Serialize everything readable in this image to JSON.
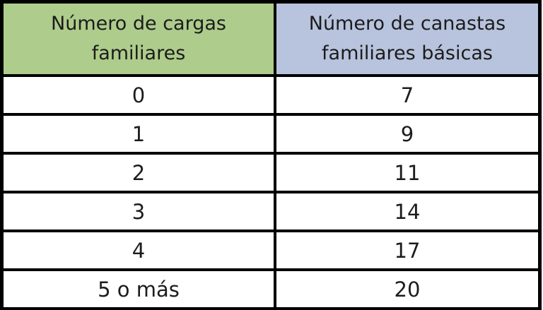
{
  "table": {
    "headers": {
      "cargas": "Número de cargas familiares",
      "canastas": "Número de canastas familiares básicas"
    },
    "rows": [
      {
        "cargas": "0",
        "canastas": "7"
      },
      {
        "cargas": "1",
        "canastas": "9"
      },
      {
        "cargas": "2",
        "canastas": "11"
      },
      {
        "cargas": "3",
        "canastas": "14"
      },
      {
        "cargas": "4",
        "canastas": "17"
      },
      {
        "cargas": "5 o más",
        "canastas": "20"
      }
    ]
  },
  "colors": {
    "header_green": "#aecc8b",
    "header_blue": "#b8c3dd",
    "border": "#000000",
    "text": "#1c1c1c",
    "cell_background": "#ffffff"
  },
  "chart_data": {
    "type": "table",
    "title": "",
    "columns": [
      "Número de cargas familiares",
      "Número de canastas familiares básicas"
    ],
    "rows": [
      [
        "0",
        "7"
      ],
      [
        "1",
        "9"
      ],
      [
        "2",
        "11"
      ],
      [
        "3",
        "14"
      ],
      [
        "4",
        "17"
      ],
      [
        "5 o más",
        "20"
      ]
    ]
  }
}
